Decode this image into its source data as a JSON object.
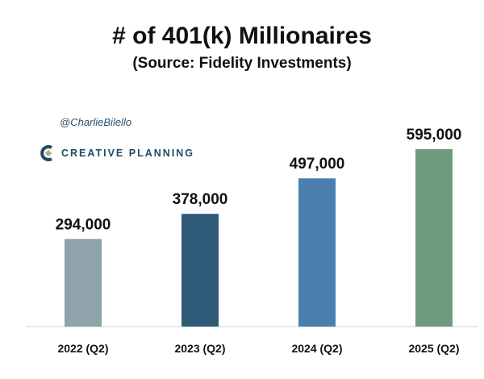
{
  "chart_data": {
    "type": "bar",
    "title": "# of 401(k) Millionaires",
    "subtitle": "(Source: Fidelity Investments)",
    "categories": [
      "2022 (Q2)",
      "2023 (Q2)",
      "2024 (Q2)",
      "2025 (Q2)"
    ],
    "values": [
      294000,
      378000,
      497000,
      595000
    ],
    "data_labels": [
      "294,000",
      "378,000",
      "497,000",
      "595,000"
    ],
    "colors": [
      "#8fa3aa",
      "#2f5b79",
      "#4a7fad",
      "#6f9b7d"
    ],
    "xlabel": "",
    "ylabel": "",
    "ylim": [
      0,
      600000
    ],
    "grid": false
  },
  "watermark": {
    "handle": "@CharlieBilello",
    "brand": "CREATIVE PLANNING"
  }
}
